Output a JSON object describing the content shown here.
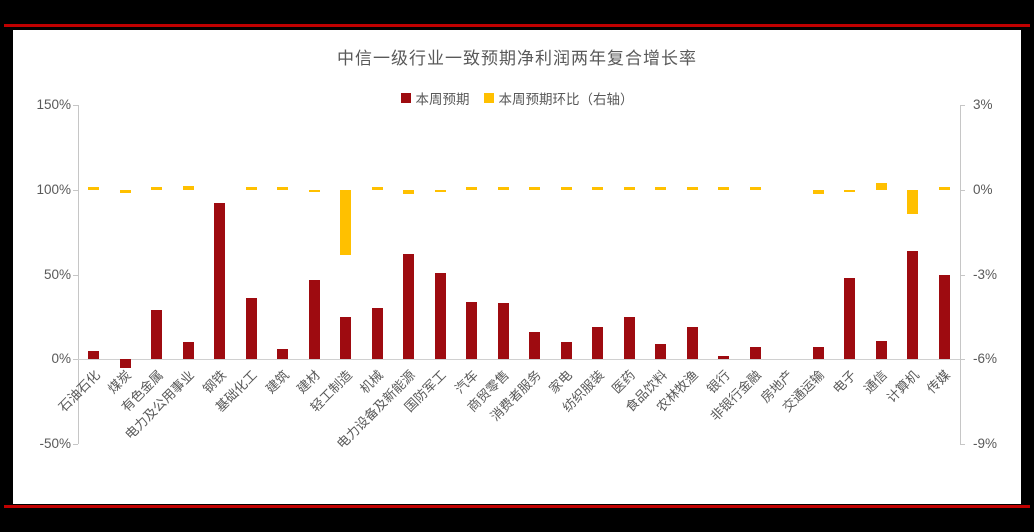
{
  "frame": {
    "background_color": "#000000",
    "card_color": "#FFFFFF",
    "accent_line_color": "#C00000"
  },
  "chart_data": {
    "type": "bar",
    "title": "中信一级行业一致预期净利润两年复合增长率",
    "legend_position": "top-center",
    "grid": "off",
    "legend": [
      {
        "label": "本周预期",
        "color": "#9E0B10",
        "axis": "left"
      },
      {
        "label": "本周预期环比（右轴）",
        "color": "#FFC000",
        "axis": "right"
      }
    ],
    "left_axis": {
      "max": 150,
      "min": -50,
      "unit": "%",
      "tick_labels": [
        "150%",
        "100%",
        "50%",
        "0%",
        "-50%"
      ]
    },
    "right_axis": {
      "max": 3,
      "min": -9,
      "unit": "%",
      "tick_labels": [
        "3%",
        "0%",
        "-3%",
        "-6%",
        "-9%"
      ]
    },
    "categories": [
      "石油石化",
      "煤炭",
      "有色金属",
      "电力及公用事业",
      "钢铁",
      "基础化工",
      "建筑",
      "建材",
      "轻工制造",
      "机械",
      "电力设备及新能源",
      "国防军工",
      "汽车",
      "商贸零售",
      "消费者服务",
      "家电",
      "纺织服装",
      "医药",
      "食品饮料",
      "农林牧渔",
      "银行",
      "非银行金融",
      "房地产",
      "交通运输",
      "电子",
      "通信",
      "计算机",
      "传媒"
    ],
    "series": [
      {
        "name": "本周预期",
        "axis": "left",
        "unit": "%",
        "color": "#9E0B10",
        "values": [
          5,
          -5,
          29,
          10,
          92,
          36,
          6,
          47,
          25,
          30,
          62,
          51,
          34,
          33,
          16,
          10,
          19,
          25,
          9,
          19,
          2,
          7,
          null,
          7,
          48,
          11,
          64,
          50
        ]
      },
      {
        "name": "本周预期环比（右轴）",
        "axis": "right",
        "unit": "%",
        "color": "#FFC000",
        "values": [
          0.05,
          -0.1,
          0.05,
          0.15,
          0,
          0.1,
          0.05,
          -0.05,
          -2.3,
          0.1,
          -0.15,
          -0.05,
          0.05,
          0.1,
          0.05,
          0.05,
          0.05,
          0.05,
          0.05,
          0.05,
          0.05,
          0.1,
          null,
          -0.15,
          -0.05,
          0.25,
          -0.85,
          0.05
        ]
      }
    ]
  }
}
